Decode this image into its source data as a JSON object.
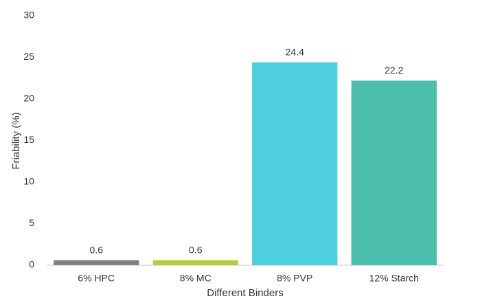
{
  "chart_data": {
    "type": "bar",
    "x_label": "Different Binders",
    "y_label": "Friability (%)",
    "categories": [
      "6% HPC",
      "8% MC",
      "8% PVP",
      "12% Starch"
    ],
    "values": [
      0.6,
      0.6,
      24.4,
      22.2
    ],
    "colors": [
      "#808080",
      "#b4cd3c",
      "#4ecfde",
      "#4bbfac"
    ],
    "ylim": [
      0,
      30
    ],
    "yticks": [
      0,
      5,
      10,
      15,
      20,
      25,
      30
    ],
    "grid": false
  }
}
